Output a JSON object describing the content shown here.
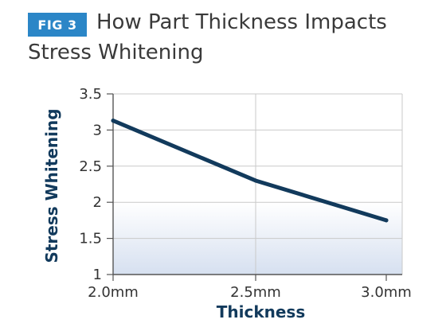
{
  "figure": {
    "badge": "FIG 3",
    "title_line1": "How Part Thickness Impacts",
    "title_line2": "Stress Whitening"
  },
  "colors": {
    "badge_bg": "#2b86c7",
    "line": "#123a5c",
    "axis_label": "#123a5c",
    "title": "#3a3a3a",
    "grid": "#c9c9c9",
    "area_fill_top": "#ffffff",
    "area_fill_bottom": "#d6e0f0"
  },
  "chart_data": {
    "type": "line",
    "title": "How Part Thickness Impacts Stress Whitening",
    "xlabel": "Thickness",
    "ylabel": "Stress Whitening",
    "categories": [
      "2.0mm",
      "2.5mm",
      "3.0mm"
    ],
    "series": [
      {
        "values": [
          3.13,
          2.3,
          1.75
        ]
      }
    ],
    "ylim": [
      1,
      3.5
    ],
    "yticks": [
      "1",
      "1.5",
      "2",
      "2.5",
      "3",
      "3.5"
    ],
    "grid": true,
    "legend": "none"
  }
}
